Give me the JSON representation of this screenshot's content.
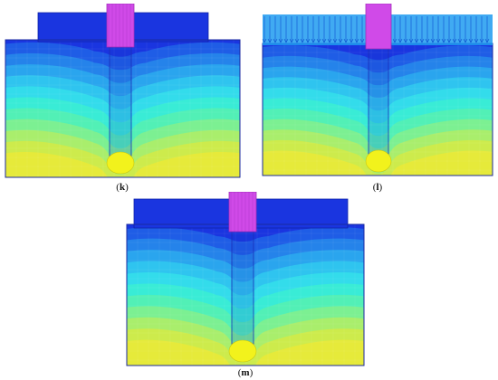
{
  "panels": [
    {
      "id": "k",
      "label": "k",
      "load_style": "cap"
    },
    {
      "id": "l",
      "label": "l",
      "load_style": "distributed"
    },
    {
      "id": "m",
      "label": "m",
      "load_style": "cap"
    }
  ],
  "contour_colors": [
    "#1a35e0",
    "#1f5de6",
    "#2583ea",
    "#2aa5ee",
    "#2fc4ef",
    "#33dceb",
    "#39ecd6",
    "#52f0b6",
    "#7cf092",
    "#a9ee6c",
    "#cdeb4c",
    "#e6ea3a"
  ],
  "pile_cap_color": "#d04ae8",
  "load_arrow_color": "#1f9bf0",
  "tip_bulb_color": "#f2f21c"
}
